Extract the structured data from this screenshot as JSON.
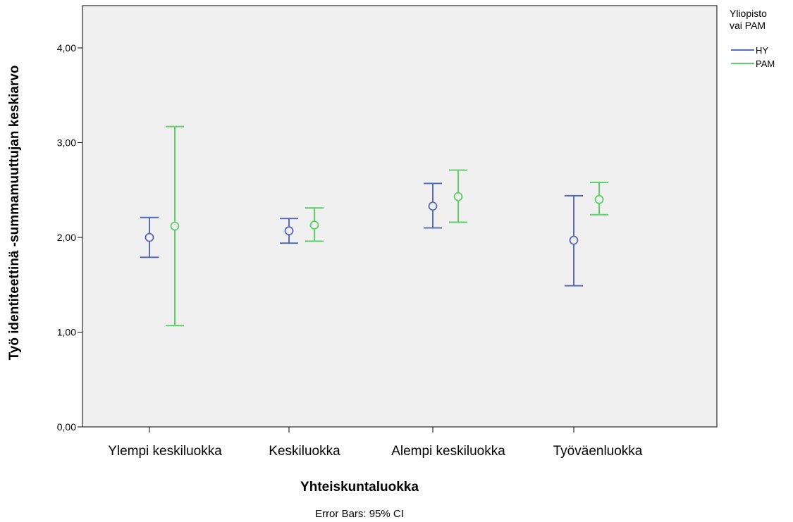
{
  "chart_data": {
    "type": "errorbar",
    "xlabel": "Yhteiskuntaluokka",
    "ylabel": "Työ identiteettinä -summamuuttujan keskiarvo",
    "footnote": "Error Bars: 95% CI",
    "categories": [
      "Ylempi keskiluokka",
      "Keskiluokka",
      "Alempi keskiluokka",
      "Työväenluokka"
    ],
    "ylim": [
      0,
      4.4
    ],
    "yticks": [
      0,
      1,
      2,
      3,
      4
    ],
    "ytick_labels": [
      "0,00",
      "1,00",
      "2,00",
      "3,00",
      "4,00"
    ],
    "grid": false,
    "plot_background": "#f0f0f0",
    "legend": {
      "title_line1": "Yliopisto",
      "title_line2": "vai PAM",
      "position": "right"
    },
    "series": [
      {
        "name": "HY",
        "color": "#5a6bbd",
        "mean": [
          2.0,
          2.07,
          2.33,
          1.97
        ],
        "lower": [
          1.79,
          1.94,
          2.1,
          1.49
        ],
        "upper": [
          2.21,
          2.2,
          2.57,
          2.44
        ]
      },
      {
        "name": "PAM",
        "color": "#5fcf6b",
        "mean": [
          2.12,
          2.13,
          2.43,
          2.4
        ],
        "lower": [
          1.07,
          1.96,
          2.16,
          2.24
        ],
        "upper": [
          3.17,
          2.31,
          2.71,
          2.58
        ]
      }
    ]
  }
}
